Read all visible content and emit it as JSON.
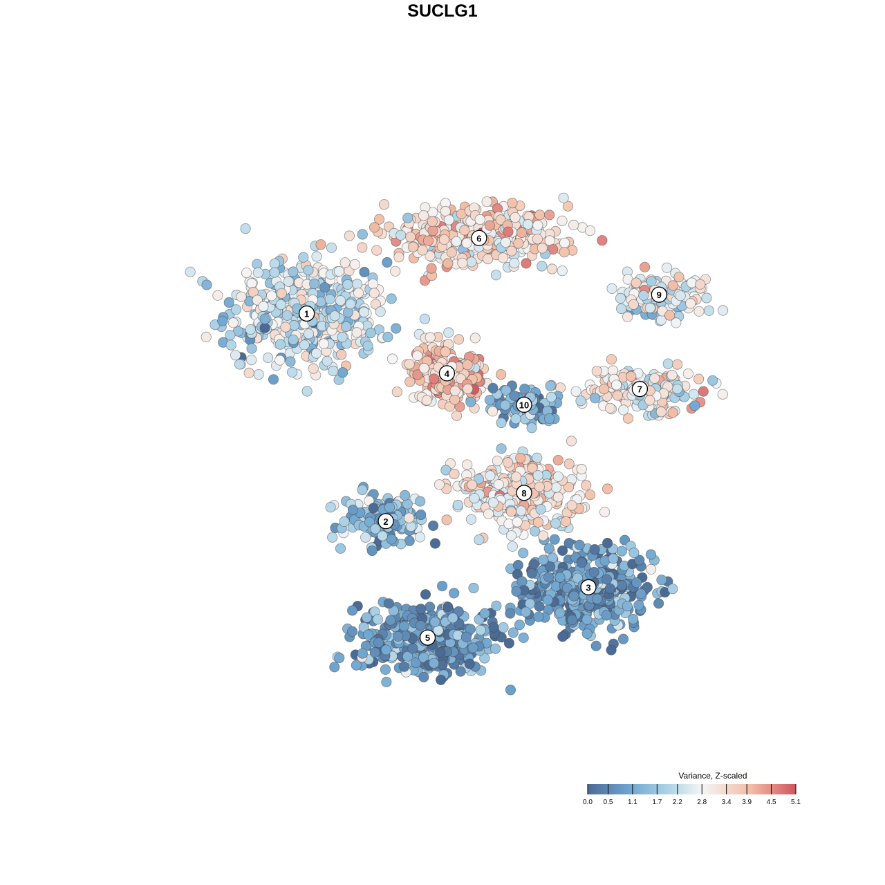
{
  "chart_data": {
    "type": "scatter",
    "title": "SUCLG1",
    "xlabel": "",
    "ylabel": "",
    "grid": false,
    "legend": {
      "title": "Variance, Z-scaled",
      "placement": "bottom-right",
      "range": [
        0.0,
        5.1
      ],
      "ticks": [
        "0.0",
        "0.5",
        "1.1",
        "1.7",
        "2.2",
        "2.8",
        "3.4",
        "3.9",
        "4.5",
        "5.1"
      ],
      "colors": [
        "#4b6b94",
        "#6fa5cf",
        "#b3d6e8",
        "#f5f5f5",
        "#f2bea6",
        "#cf5561"
      ]
    },
    "clusters": [
      {
        "label": "1",
        "x": 0.262,
        "y": 0.705,
        "mean": 2.3,
        "spread": [
          0.14,
          0.1
        ],
        "n": 440
      },
      {
        "label": "2",
        "x": 0.385,
        "y": 0.375,
        "mean": 1.4,
        "spread": [
          0.075,
          0.05
        ],
        "n": 150
      },
      {
        "label": "3",
        "x": 0.7,
        "y": 0.27,
        "mean": 0.9,
        "spread": [
          0.11,
          0.075
        ],
        "n": 420
      },
      {
        "label": "4",
        "x": 0.48,
        "y": 0.61,
        "mean": 3.6,
        "spread": [
          0.065,
          0.05
        ],
        "n": 230
      },
      {
        "label": "5",
        "x": 0.45,
        "y": 0.19,
        "mean": 0.8,
        "spread": [
          0.12,
          0.06
        ],
        "n": 420
      },
      {
        "label": "6",
        "x": 0.53,
        "y": 0.825,
        "mean": 3.3,
        "spread": [
          0.16,
          0.05
        ],
        "n": 380
      },
      {
        "label": "7",
        "x": 0.78,
        "y": 0.585,
        "mean": 2.9,
        "spread": [
          0.11,
          0.035
        ],
        "n": 170
      },
      {
        "label": "8",
        "x": 0.6,
        "y": 0.42,
        "mean": 3.0,
        "spread": [
          0.11,
          0.06
        ],
        "n": 300
      },
      {
        "label": "9",
        "x": 0.81,
        "y": 0.735,
        "mean": 2.6,
        "spread": [
          0.08,
          0.04
        ],
        "n": 120
      },
      {
        "label": "10",
        "x": 0.6,
        "y": 0.56,
        "mean": 1.3,
        "spread": [
          0.06,
          0.04
        ],
        "n": 90
      }
    ]
  }
}
